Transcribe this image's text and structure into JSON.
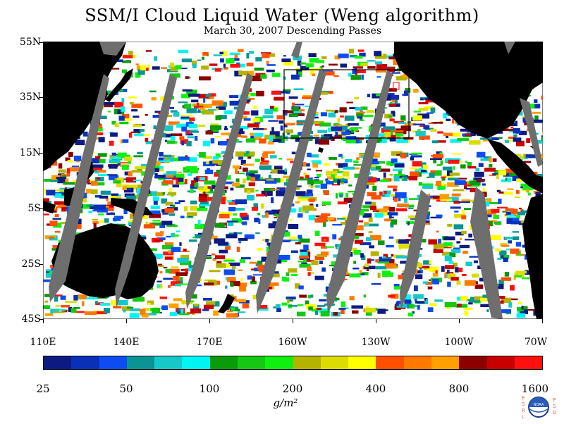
{
  "title": "SSM/I Cloud Liquid Water (Weng algorithm)",
  "subtitle": "March 30, 2007  Descending Passes",
  "y_axis_labels": [
    "55N",
    "35N",
    "15N",
    "5S",
    "25S",
    "45S"
  ],
  "x_axis_labels": [
    "110E",
    "140E",
    "170E",
    "160W",
    "130W",
    "100W",
    "70W"
  ],
  "colorbar": {
    "colors": [
      "#0c1a82",
      "#0a30b8",
      "#0c4cf0",
      "#0a9494",
      "#16c8c8",
      "#00f4f4",
      "#0a9a0a",
      "#14c814",
      "#10f010",
      "#b4b400",
      "#dcdc00",
      "#ffff00",
      "#ff5000",
      "#ff7800",
      "#ffa000",
      "#8c0000",
      "#c80000",
      "#ff1010"
    ],
    "labels": [
      "25",
      "50",
      "100",
      "200",
      "400",
      "800",
      "1600"
    ],
    "unit": "g/m²"
  },
  "logo": {
    "left_text": "ESRL",
    "right_text": "PSD",
    "center_text": "NOAA"
  }
}
